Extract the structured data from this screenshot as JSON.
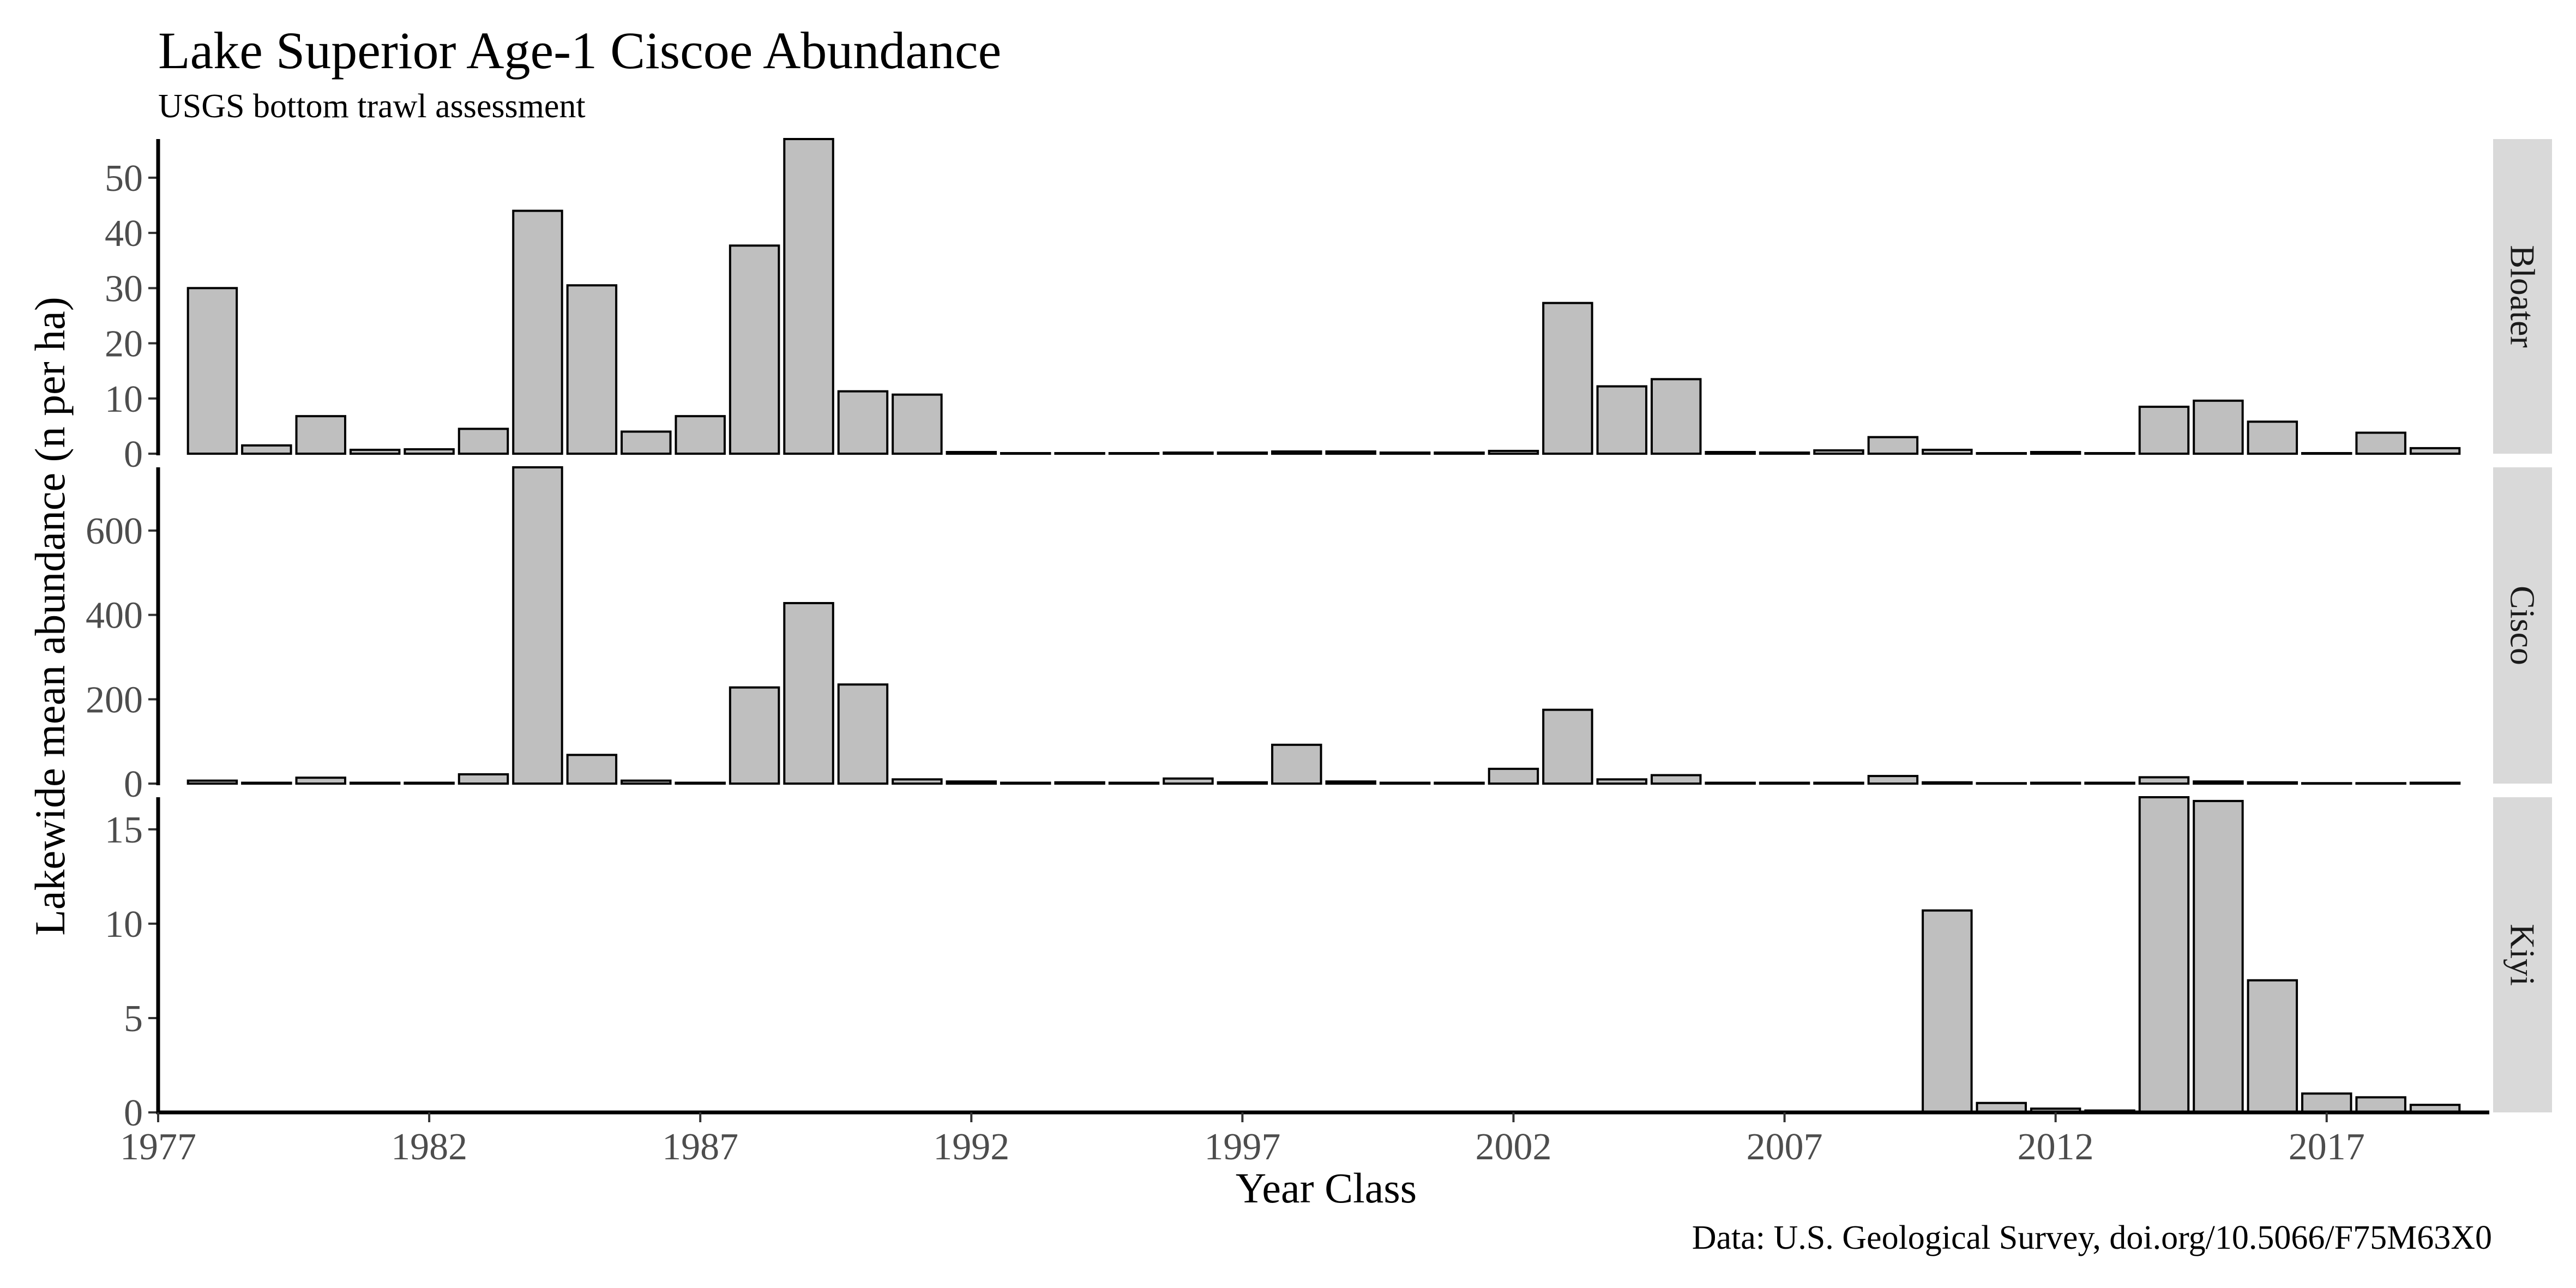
{
  "chart_data": {
    "type": "bar",
    "title": "Lake Superior Age-1 Ciscoe Abundance",
    "subtitle": "USGS bottom trawl assessment",
    "caption": "Data: U.S. Geological Survey, doi.org/10.5066/F75M63X0",
    "xlabel": "Year Class",
    "ylabel": "Lakewide mean abundance (n per ha)",
    "x": [
      1978,
      1979,
      1980,
      1981,
      1982,
      1983,
      1984,
      1985,
      1986,
      1987,
      1988,
      1989,
      1990,
      1991,
      1992,
      1993,
      1994,
      1995,
      1996,
      1997,
      1998,
      1999,
      2000,
      2001,
      2002,
      2003,
      2004,
      2005,
      2006,
      2007,
      2008,
      2009,
      2010,
      2011,
      2012,
      2013,
      2014,
      2015,
      2016,
      2017,
      2018,
      2019
    ],
    "xlim": [
      1977,
      2020
    ],
    "x_ticks": [
      1977,
      1982,
      1987,
      1992,
      1997,
      2002,
      2007,
      2012,
      2017
    ],
    "bar_color": "#bfbfbf",
    "bar_outline": "#000000",
    "strip_color": "#d9d9d9",
    "panels": [
      {
        "name": "Bloater",
        "ylim": [
          0,
          57
        ],
        "y_ticks": [
          0,
          10,
          20,
          30,
          40,
          50
        ],
        "values": [
          30,
          1.5,
          6.8,
          0.7,
          0.8,
          4.5,
          44,
          30.5,
          4.0,
          6.8,
          37.7,
          57,
          11.3,
          10.7,
          0.3,
          0.1,
          0.1,
          0.1,
          0.2,
          0.2,
          0.4,
          0.4,
          0.2,
          0.2,
          0.5,
          27.3,
          12.2,
          13.5,
          0.3,
          0.2,
          0.6,
          3.0,
          0.7,
          0.1,
          0.3,
          0.1,
          8.5,
          9.6,
          5.8,
          0.1,
          3.8,
          1.0
        ]
      },
      {
        "name": "Cisco",
        "ylim": [
          0,
          750
        ],
        "y_ticks": [
          0,
          200,
          400,
          600
        ],
        "values": [
          7,
          2,
          14,
          2,
          2,
          22,
          750,
          68,
          7,
          2,
          228,
          428,
          235,
          10,
          5,
          2,
          3,
          2,
          12,
          3,
          92,
          5,
          2,
          2,
          35,
          175,
          10,
          20,
          2,
          2,
          2,
          18,
          3,
          1,
          2,
          2,
          15,
          5,
          3,
          1,
          1,
          2
        ]
      },
      {
        "name": "Kiyi",
        "ylim": [
          0,
          16.7
        ],
        "y_ticks": [
          0,
          5,
          10,
          15
        ],
        "values": [
          0,
          0,
          0,
          0,
          0,
          0,
          0,
          0,
          0,
          0,
          0,
          0,
          0,
          0,
          0,
          0,
          0,
          0,
          0,
          0,
          0,
          0,
          0,
          0,
          0,
          0,
          0,
          0,
          0,
          0,
          0,
          0,
          10.7,
          0.5,
          0.2,
          0.1,
          16.7,
          16.5,
          7.0,
          1.0,
          0.8,
          0.4
        ]
      }
    ]
  }
}
